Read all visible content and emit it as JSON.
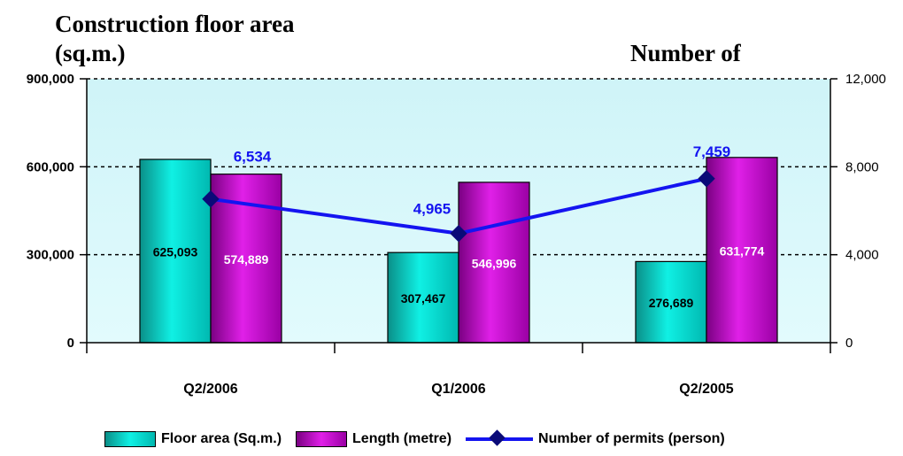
{
  "chart_data": {
    "type": "bar",
    "title_left_line1": "Construction floor area",
    "title_left_line2": "(sq.m.)",
    "title_right": "Number of",
    "categories": [
      "Q2/2006",
      "Q1/2006",
      "Q2/2005"
    ],
    "series": [
      {
        "name": "Floor area (Sq.m.)",
        "type": "bar",
        "axis": "left",
        "values": [
          625093,
          307467,
          276689
        ],
        "labels": [
          "625,093",
          "307,467",
          "276,689"
        ],
        "color": "#00d8d0"
      },
      {
        "name": "Length (metre)",
        "type": "bar",
        "axis": "left",
        "values": [
          574889,
          546996,
          631774
        ],
        "labels": [
          "574,889",
          "546,996",
          "631,774"
        ],
        "color": "#c400c8"
      },
      {
        "name": "Number of permits (person)",
        "type": "line",
        "axis": "right",
        "values": [
          6534,
          4965,
          7459
        ],
        "labels": [
          "6,534",
          "4,965",
          "7,459"
        ],
        "color": "#1414f0"
      }
    ],
    "y_left": {
      "range": [
        0,
        900000
      ],
      "ticks": [
        0,
        300000,
        600000,
        900000
      ],
      "tick_labels": [
        "0",
        "300,000",
        "600,000",
        "900,000"
      ]
    },
    "y_right": {
      "range": [
        0,
        12000
      ],
      "ticks": [
        0,
        4000,
        8000,
        12000
      ],
      "tick_labels": [
        "0",
        "4,000",
        "8,000",
        "12,000"
      ]
    },
    "grid": "dashed horizontal",
    "plot_background": "#d8f8fc",
    "legend_position": "bottom"
  }
}
